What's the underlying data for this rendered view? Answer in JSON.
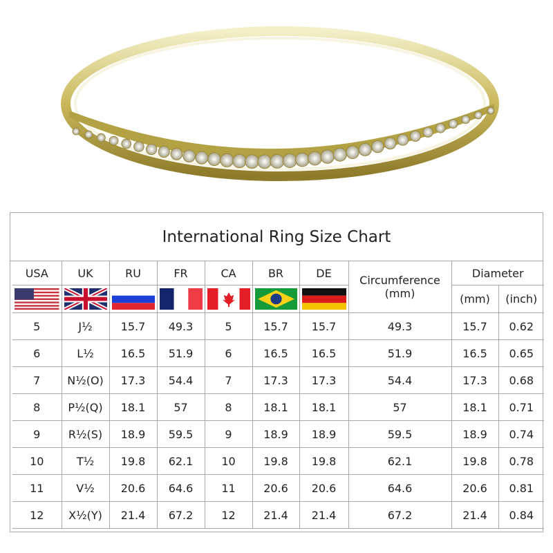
{
  "title": "International Ring Size Chart",
  "headers": {
    "usa": "USA",
    "uk": "UK",
    "ru": "RU",
    "fr": "FR",
    "ca": "CA",
    "br": "BR",
    "de": "DE",
    "circumference": "Circumference",
    "circumference_unit": "(mm)",
    "diameter": "Diameter",
    "diameter_mm": "(mm)",
    "diameter_inch": "(inch)"
  },
  "flags": [
    "us-flag",
    "uk-flag",
    "russia-flag",
    "france-flag",
    "canada-flag",
    "brazil-flag",
    "germany-flag"
  ],
  "rows": [
    [
      "5",
      "J½",
      "15.7",
      "49.3",
      "5",
      "15.7",
      "15.7",
      "49.3",
      "15.7",
      "0.62"
    ],
    [
      "6",
      "L½",
      "16.5",
      "51.9",
      "6",
      "16.5",
      "16.5",
      "51.9",
      "16.5",
      "0.65"
    ],
    [
      "7",
      "N½(O)",
      "17.3",
      "54.4",
      "7",
      "17.3",
      "17.3",
      "54.4",
      "17.3",
      "0.68"
    ],
    [
      "8",
      "P½(Q)",
      "18.1",
      "57",
      "8",
      "18.1",
      "18.1",
      "57",
      "18.1",
      "0.71"
    ],
    [
      "9",
      "R½(S)",
      "18.9",
      "59.5",
      "9",
      "18.9",
      "18.9",
      "59.5",
      "18.9",
      "0.74"
    ],
    [
      "10",
      "T½",
      "19.8",
      "62.1",
      "10",
      "19.8",
      "19.8",
      "62.1",
      "19.8",
      "0.78"
    ],
    [
      "11",
      "V½",
      "20.6",
      "64.6",
      "11",
      "20.6",
      "20.6",
      "64.6",
      "20.6",
      "0.81"
    ],
    [
      "12",
      "X½(Y)",
      "21.4",
      "67.2",
      "12",
      "21.4",
      "21.4",
      "67.2",
      "21.4",
      "0.84"
    ]
  ]
}
